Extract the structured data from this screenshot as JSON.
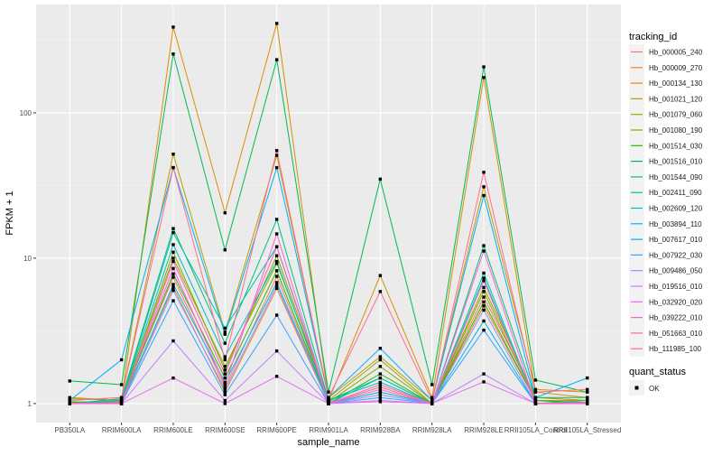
{
  "chart_data": {
    "type": "line",
    "xlabel": "sample_name",
    "ylabel": "FPKM + 1",
    "y_scale": "log10",
    "ylim": [
      0.74,
      556
    ],
    "y_ticks": [
      1,
      10,
      100
    ],
    "y_tick_labels": [
      "1",
      "10",
      "100"
    ],
    "grid": true,
    "legend_position": "right",
    "categories": [
      "PB350LA",
      "RRIM600LA",
      "RRIM600LE",
      "RRIM600SE",
      "RRIM600PE",
      "RRIM901LA",
      "RRIM928BA",
      "RRIM928LA",
      "RRIM928LE",
      "RRII105LA_Control",
      "RRII105LA_Stressed"
    ],
    "color_legend_title": "tracking_id",
    "shape_legend_title": "quant_status",
    "shape_legend_entries": [
      "OK"
    ],
    "series": [
      {
        "name": "Hb_000005_240",
        "color": "#F8766D",
        "values": [
          1.0,
          1.05,
          7.4,
          1.3,
          7.5,
          1.0,
          1.3,
          1.0,
          5.4,
          1.1,
          1.05
        ]
      },
      {
        "name": "Hb_000009_270",
        "color": "#EA8331",
        "values": [
          1.02,
          1.03,
          6.3,
          1.2,
          6.2,
          1.0,
          1.2,
          1.0,
          4.7,
          1.05,
          1.05
        ]
      },
      {
        "name": "Hb_000134_130",
        "color": "#D89000",
        "values": [
          1.1,
          1.05,
          389,
          20.5,
          412,
          1.05,
          7.6,
          1.1,
          175,
          1.2,
          1.1
        ]
      },
      {
        "name": "Hb_001021_120",
        "color": "#C09B00",
        "values": [
          1.05,
          1.1,
          52,
          3.1,
          51,
          1.1,
          2.1,
          1.05,
          31,
          1.25,
          1.2
        ]
      },
      {
        "name": "Hb_001079_060",
        "color": "#A3A500",
        "values": [
          1.08,
          1.05,
          10,
          1.8,
          9.2,
          1.05,
          2.0,
          1.0,
          6.3,
          1.1,
          1.05
        ]
      },
      {
        "name": "Hb_001080_190",
        "color": "#7CAE00",
        "values": [
          1.03,
          1.02,
          11,
          1.7,
          10.4,
          1.02,
          1.8,
          1.0,
          5.9,
          1.05,
          1.02
        ]
      },
      {
        "name": "Hb_001514_030",
        "color": "#39B600",
        "values": [
          1.02,
          1.02,
          7.8,
          1.5,
          8.2,
          1.0,
          1.6,
          1.0,
          5.0,
          1.05,
          1.0
        ]
      },
      {
        "name": "Hb_001516_010",
        "color": "#00BB4E",
        "values": [
          1.43,
          1.35,
          254,
          11.4,
          232,
          1.2,
          35,
          1.35,
          207,
          1.45,
          1.2
        ]
      },
      {
        "name": "Hb_001544_090",
        "color": "#00BF7D",
        "values": [
          1.0,
          1.08,
          16,
          2.6,
          18.5,
          1.05,
          1.5,
          1.0,
          12.2,
          1.1,
          1.1
        ]
      },
      {
        "name": "Hb_002411_090",
        "color": "#00C1A3",
        "values": [
          1.0,
          1.05,
          15,
          3.3,
          12,
          1.05,
          1.4,
          1.0,
          7.9,
          1.0,
          1.05
        ]
      },
      {
        "name": "Hb_002609_120",
        "color": "#00BFC4",
        "values": [
          1.0,
          1.05,
          12.4,
          2.1,
          9.5,
          1.0,
          1.5,
          1.0,
          7.3,
          1.0,
          1.0
        ]
      },
      {
        "name": "Hb_003894_110",
        "color": "#00BAE0",
        "values": [
          1.0,
          1.0,
          6.6,
          1.4,
          6.8,
          1.0,
          1.2,
          1.0,
          3.7,
          1.0,
          1.0
        ]
      },
      {
        "name": "Hb_007617_010",
        "color": "#00B0F6",
        "values": [
          1.05,
          2.0,
          42,
          3.0,
          42,
          1.1,
          2.4,
          1.05,
          27,
          1.1,
          1.5
        ]
      },
      {
        "name": "Hb_007922_030",
        "color": "#35A2FF",
        "values": [
          1.0,
          1.0,
          5.1,
          1.15,
          4.06,
          1.0,
          1.1,
          1.0,
          3.2,
          1.0,
          1.0
        ]
      },
      {
        "name": "Hb_009486_050",
        "color": "#9590FF",
        "values": [
          1.0,
          1.0,
          6.0,
          1.25,
          6.5,
          1.0,
          1.15,
          1.0,
          4.4,
          1.0,
          1.0
        ]
      },
      {
        "name": "Hb_019516_010",
        "color": "#C77CFF",
        "values": [
          1.0,
          1.0,
          2.7,
          1.05,
          2.3,
          1.0,
          1.05,
          1.0,
          1.6,
          1.0,
          1.0
        ]
      },
      {
        "name": "Hb_032920_020",
        "color": "#E76BF3",
        "values": [
          1.0,
          1.0,
          1.5,
          1.0,
          1.54,
          1.0,
          1.03,
          1.0,
          1.41,
          1.0,
          1.0
        ]
      },
      {
        "name": "Hb_039222_010",
        "color": "#FA62DB",
        "values": [
          1.0,
          1.02,
          8.5,
          1.35,
          14.7,
          1.0,
          1.25,
          1.0,
          11.2,
          1.0,
          1.0
        ]
      },
      {
        "name": "Hb_051663_010",
        "color": "#FF62BC",
        "values": [
          1.0,
          1.0,
          9.5,
          1.6,
          12,
          1.0,
          1.35,
          1.0,
          7.0,
          1.0,
          1.02
        ]
      },
      {
        "name": "Hb_111985_100",
        "color": "#FF6C91",
        "values": [
          1.05,
          1.1,
          42,
          2.0,
          55,
          1.1,
          5.9,
          1.05,
          39,
          1.2,
          1.25
        ]
      }
    ]
  }
}
